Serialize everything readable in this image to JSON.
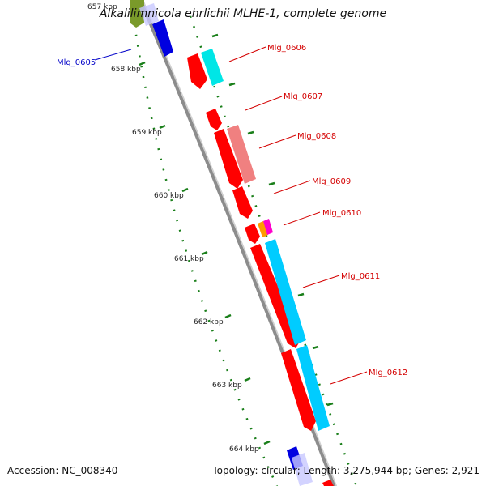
{
  "title": "Alkalilimnicola ehrlichii MLHE-1, complete genome",
  "footer": {
    "accession": "Accession: NC_008340",
    "summary": "Topology: circular; Length: 3,275,944 bp; Genes: 2,921"
  },
  "ruler": {
    "ticks": [
      "657 kbp",
      "658 kbp",
      "659 kbp",
      "660 kbp",
      "661 kbp",
      "662 kbp",
      "663 kbp",
      "664 kbp"
    ]
  },
  "colors": {
    "forward_cds": "#ff0000",
    "reverse_cds": "#00ccff",
    "pink_feature": "#f08080",
    "backbone": "#8c8c8c",
    "tick_green": "#1a7f1a",
    "label_red": "#d40000",
    "label_blue": "#0000c8"
  },
  "gene_labels": [
    {
      "id": "g0605",
      "text": "Mlg_0605",
      "color": "blue"
    },
    {
      "id": "g0606",
      "text": "Mlg_0606",
      "color": "red"
    },
    {
      "id": "g0607",
      "text": "Mlg_0607",
      "color": "red"
    },
    {
      "id": "g0608",
      "text": "Mlg_0608",
      "color": "red"
    },
    {
      "id": "g0609",
      "text": "Mlg_0609",
      "color": "red"
    },
    {
      "id": "g0610",
      "text": "Mlg_0610",
      "color": "red"
    },
    {
      "id": "g0611",
      "text": "Mlg_0611",
      "color": "red"
    },
    {
      "id": "g0612",
      "text": "Mlg_0612",
      "color": "red"
    }
  ]
}
